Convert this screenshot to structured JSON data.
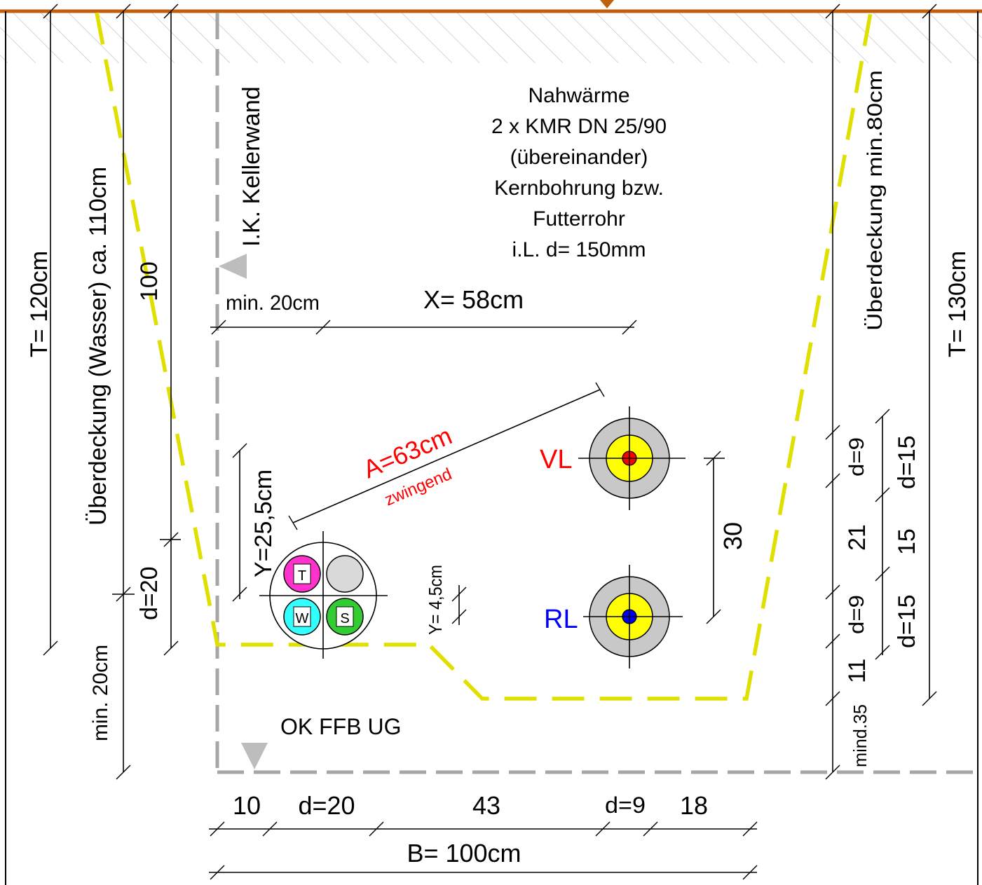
{
  "title_block": {
    "lines": [
      "Nahwärme",
      "2 x KMR DN 25/90",
      "(übereinander)",
      "Kernbohrung bzw.",
      "Futterrohr",
      "i.L. d= 150mm"
    ]
  },
  "labels": {
    "wall": "I.K. Kellerwand",
    "floor": "OK FFB UG",
    "depth_left": "T= 120cm",
    "depth_right": "T= 130cm",
    "cover_water": "Überdeckung (Wasser) ca. 110cm",
    "cover_min": "Überdeckung min.80cm",
    "dim_100": "100",
    "dim_d20_left": "d=20",
    "dim_min20_left": "min. 20cm",
    "dim_min20_top": "min. 20cm",
    "dim_x": "X= 58cm",
    "dim_y": "Y=25,5cm",
    "dim_y45": "Y= 4,5cm",
    "dim_a": "A=63cm",
    "dim_a_note": "zwingend",
    "dim_30": "30",
    "vl": "VL",
    "rl": "RL",
    "r_d9_top": "d=9",
    "r_21": "21",
    "r_d9_bot": "d=9",
    "r_11": "11",
    "r_mind35": "mind.35",
    "r_d15_top": "d=15",
    "r_15": "15",
    "r_d15_bot": "d=15",
    "b_10": "10",
    "b_d20": "d=20",
    "b_43": "43",
    "b_d9": "d=9",
    "b_18": "18",
    "b_total": "B= 100cm"
  },
  "water_bundle": {
    "cells": [
      {
        "letter": "T",
        "color": "#ff33cc"
      },
      {
        "letter": "",
        "color": "#d9d9d9"
      },
      {
        "letter": "W",
        "color": "#33ffff"
      },
      {
        "letter": "S",
        "color": "#33cc33"
      }
    ]
  },
  "colors": {
    "ground_line": "#c0600a",
    "trench": "#e6e600",
    "wall": "#a6a6a6",
    "annotation_red": "#ff0000",
    "vl_core": "#ff0000",
    "rl_core": "#0000ff",
    "rl_label": "#0000ff",
    "pipe_outer": "#c8c8c8",
    "pipe_inner": "#ffff00"
  }
}
